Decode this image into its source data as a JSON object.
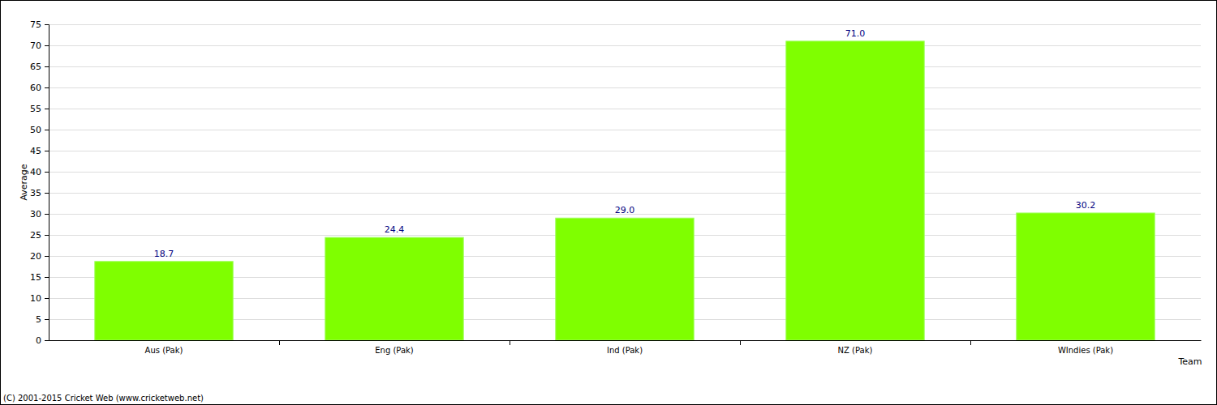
{
  "chart_data": {
    "type": "bar",
    "x_label": "Team",
    "y_label": "Average",
    "annotations": [
      "(C) 2001-2015 Cricket Web (www.cricketweb.net)"
    ],
    "categories": [
      "Aus (Pak)",
      "Eng (Pak)",
      "Ind (Pak)",
      "NZ (Pak)",
      "WIndies (Pak)"
    ],
    "values": [
      18.7,
      24.4,
      29.0,
      71.0,
      30.2
    ],
    "value_labels": [
      "18.7",
      "24.4",
      "29.0",
      "71.0",
      "30.2"
    ],
    "color": "#7fff00",
    "ylim": [
      0,
      75
    ],
    "yticks": [
      0,
      5,
      10,
      15,
      20,
      25,
      30,
      35,
      40,
      45,
      50,
      55,
      60,
      65,
      70,
      75
    ],
    "grid": true,
    "data_labels": true
  }
}
